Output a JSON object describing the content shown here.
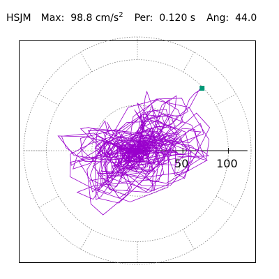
{
  "title": {
    "station": "HSJM",
    "max_label": "Max:",
    "max_value": "98.8",
    "max_unit": "cm/s",
    "max_unit_exp": "2",
    "per_label": "Per:",
    "per_value": "0.120 s",
    "ang_label": "Ang:",
    "ang_value": "44.0"
  },
  "chart_data": {
    "type": "polar-orbit",
    "r_max": 125,
    "rings": [
      50,
      100
    ],
    "radial_spokes_deg": [
      0,
      30,
      60,
      90,
      120,
      150,
      180,
      210,
      240,
      270,
      300,
      330
    ],
    "axis_ticks": [
      50,
      100
    ],
    "axis_tick_labels": [
      "50",
      "100"
    ],
    "max_point": {
      "amplitude": 98.8,
      "angle_deg": 44.0
    },
    "colors": {
      "trace": "#9900cc",
      "marker": "#009977",
      "grid": "#808080",
      "frame": "#000000"
    }
  }
}
